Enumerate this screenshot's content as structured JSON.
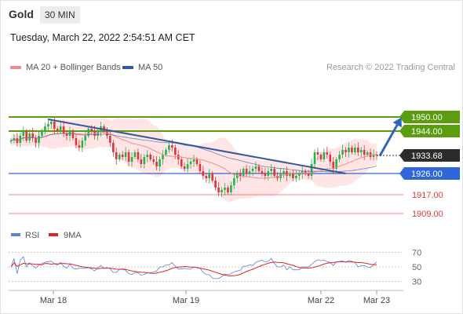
{
  "header": {
    "instrument": "Gold",
    "timeframe": "30 MIN",
    "datetime": "Tuesday, March 22, 2022 2:54:51 AM CET"
  },
  "legend": {
    "items": [
      {
        "label": "MA 20 + Bollinger Bands",
        "color": "#f28c8c"
      },
      {
        "label": "MA 50",
        "color": "#34599b"
      }
    ],
    "credit": "Research © 2022 Trading Central"
  },
  "chart_data": [
    {
      "type": "candlestick",
      "title": "",
      "x_labels": [
        "Mar 18",
        "Mar 19",
        "Mar 22",
        "Mar 23"
      ],
      "ylim": [
        1903,
        1968
      ],
      "current_price": {
        "value": 1933.68,
        "label": "1933.68"
      },
      "levels": [
        {
          "label": "1950.00",
          "value": 1950.0,
          "kind": "resistance",
          "color": "#5a9e0f"
        },
        {
          "label": "1944.00",
          "value": 1944.0,
          "kind": "resistance",
          "color": "#5a9e0f"
        },
        {
          "label": "1926.00",
          "value": 1926.0,
          "kind": "pivot",
          "color": "#2f67d8"
        },
        {
          "label": "1917.00",
          "value": 1917.0,
          "kind": "support",
          "color": "#e03c3c"
        },
        {
          "label": "1909.00",
          "value": 1909.0,
          "kind": "support",
          "color": "#e03c3c"
        }
      ],
      "trendline": {
        "from_index": 12,
        "from_value": 1949,
        "to_index": 108,
        "to_value": 1926
      },
      "projection_arrow": {
        "from_index": 119,
        "from_value": 1933.5,
        "to_index": 126,
        "to_value": 1949.8
      },
      "closes": [
        1940,
        1941,
        1939,
        1942,
        1944,
        1940,
        1943,
        1941,
        1939,
        1942,
        1944,
        1946,
        1947,
        1948,
        1945,
        1944,
        1946,
        1943,
        1942,
        1944,
        1941,
        1938,
        1937,
        1940,
        1942,
        1945,
        1944,
        1942,
        1944,
        1946,
        1944,
        1942,
        1939,
        1935,
        1932,
        1934,
        1933,
        1935,
        1931,
        1933,
        1935,
        1932,
        1930,
        1933,
        1934,
        1932,
        1931,
        1929,
        1932,
        1934,
        1936,
        1938,
        1937,
        1934,
        1932,
        1929,
        1928,
        1930,
        1931,
        1932,
        1930,
        1927,
        1925,
        1924,
        1926,
        1923,
        1920,
        1918,
        1919,
        1920,
        1918,
        1921,
        1924,
        1926,
        1925,
        1928,
        1926,
        1927,
        1928,
        1929,
        1927,
        1926,
        1925,
        1927,
        1928,
        1925,
        1924,
        1926,
        1927,
        1925,
        1926,
        1924,
        1925,
        1926,
        1927,
        1926,
        1925,
        1930,
        1935,
        1934,
        1932,
        1935,
        1934,
        1931,
        1928,
        1932,
        1934,
        1936,
        1935,
        1937,
        1935,
        1937,
        1935,
        1936,
        1934,
        1935,
        1933,
        1934,
        1933.68
      ],
      "rsi": {
        "ylim": [
          20,
          80
        ],
        "ticks": [
          70,
          50,
          30
        ],
        "series": [
          {
            "name": "RSI",
            "color": "#5b83d6"
          },
          {
            "name": "9MA",
            "color": "#e02424"
          }
        ]
      }
    }
  ]
}
